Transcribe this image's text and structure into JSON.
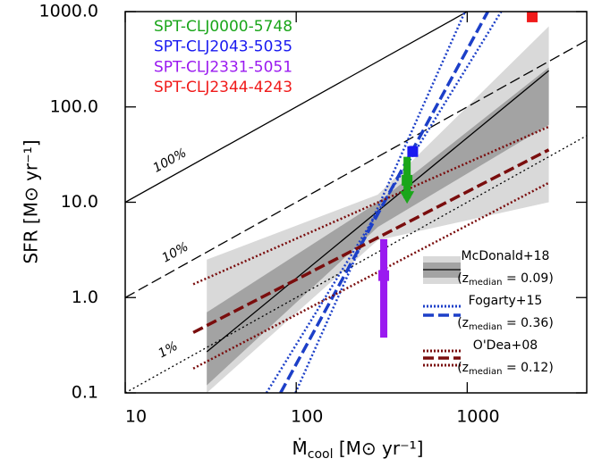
{
  "chart_data": {
    "type": "line",
    "xlabel": {
      "main": "Ṁ",
      "sub": "cool",
      "unit": " [M⊙ yr⁻¹]"
    },
    "ylabel": "SFR [M⊙ yr⁻¹]",
    "xlog": true,
    "ylog": true,
    "xlim": [
      10,
      5000
    ],
    "ylim": [
      0.1,
      1000
    ],
    "xticks": [
      10,
      100,
      1000
    ],
    "yticks": [
      0.1,
      {
        "value": 1,
        "label": "1.0"
      },
      {
        "value": 10,
        "label": "10.0"
      },
      {
        "value": 100,
        "label": "100.0"
      },
      {
        "value": 1000,
        "label": "1000.0"
      }
    ],
    "reference_lines": [
      {
        "label": "100%",
        "style": "solid",
        "x": [
          10,
          5000
        ],
        "values": [
          10,
          5000
        ]
      },
      {
        "label": "10%",
        "style": "dashed",
        "x": [
          10,
          5000
        ],
        "values": [
          1,
          500
        ]
      },
      {
        "label": "1%",
        "style": "dotted",
        "x": [
          10,
          5000
        ],
        "values": [
          0.1,
          50
        ]
      }
    ],
    "fits": [
      {
        "name": "McDonald+18",
        "note": {
          "pre": "(z",
          "sub": "median",
          "post": " = 0.09)"
        },
        "color": "#000000",
        "style": "solid",
        "x": [
          30,
          3000
        ],
        "values": [
          0.27,
          240
        ],
        "bands": [
          {
            "color": "#d9d9d9",
            "x": [
              30,
              300,
              3000
            ],
            "low": [
              0.1,
              4,
              10
            ],
            "high": [
              2.5,
              12,
              700
            ]
          },
          {
            "color": "#a3a3a3",
            "x": [
              30,
              300,
              3000
            ],
            "low": [
              0.12,
              5.5,
              65
            ],
            "high": [
              0.7,
              10,
              260
            ]
          }
        ],
        "bounds": []
      },
      {
        "name": "Fogarty+15",
        "note": {
          "pre": "(z",
          "sub": "median",
          "post": " = 0.36)"
        },
        "color": "#1c3fc8",
        "style": "dashed",
        "x": [
          81,
          1320
        ],
        "values": [
          0.1,
          1000
        ],
        "bands": [],
        "bounds": [
          {
            "x": [
              67,
              1580
            ],
            "values": [
              0.1,
              1000
            ]
          },
          {
            "x": [
              99,
              970
            ],
            "values": [
              0.1,
              1000
            ]
          }
        ]
      },
      {
        "name": "O'Dea+08",
        "note": {
          "pre": "(z",
          "sub": "median",
          "post": " = 0.12)"
        },
        "color": "#7a0d0d",
        "style": "dashed",
        "x": [
          25,
          3000
        ],
        "values": [
          0.43,
          35.5
        ],
        "bands": [],
        "bounds": [
          {
            "x": [
              25,
              3000
            ],
            "values": [
              1.38,
              62
            ]
          },
          {
            "x": [
              25,
              3000
            ],
            "values": [
              0.18,
              16
            ]
          }
        ]
      }
    ],
    "points": [
      {
        "name": "SPT-CLJ0000-5748",
        "color": "#1aa61a",
        "x": 445,
        "value": 17,
        "low": 11,
        "high": 30,
        "upper_limit": true
      },
      {
        "name": "SPT-CLJ2043-5035",
        "color": "#1a1af0",
        "x": 480,
        "value": 34,
        "low": 30,
        "high": 39
      },
      {
        "name": "SPT-CLJ2331-5051",
        "color": "#9a1af0",
        "x": 325,
        "value": 1.7,
        "low": 0.38,
        "high": 4.1
      },
      {
        "name": "SPT-CLJ2344-4243",
        "color": "#f01a1a",
        "x": 2400,
        "value": 880,
        "low": 790,
        "high": 980
      }
    ]
  }
}
